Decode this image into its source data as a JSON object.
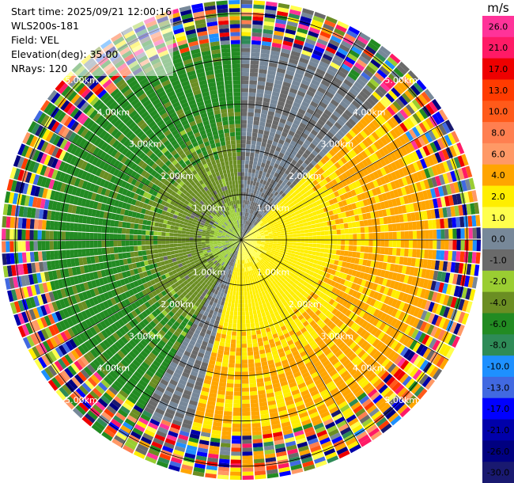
{
  "info": {
    "start_time": "Start time: 2025/09/21 12:00:16",
    "site": "WLS200s-181",
    "field": "Field: VEL",
    "elevation": "Elevation(deg): 35.00",
    "nrays": "NRays: 120"
  },
  "chart_data": {
    "type": "heatmap",
    "subtype": "ppi-polar",
    "field": "VEL",
    "units": "m/s",
    "nrays": 120,
    "range_max_km": 5.3,
    "range_rings_km": [
      1,
      2,
      3,
      4,
      5
    ],
    "ring_labels": [
      "1.00km",
      "2.00km",
      "3.00km",
      "4.00km",
      "5.00km"
    ],
    "spokes_deg": [
      0,
      30,
      60,
      90,
      120,
      150,
      180,
      210,
      240,
      270,
      300,
      330
    ],
    "colorbar": {
      "title": "m/s",
      "tick_labels": [
        "26.0",
        "21.0",
        "17.0",
        "13.0",
        "10.0",
        "8.0",
        "6.0",
        "4.0",
        "2.0",
        "1.0",
        "0.0",
        "-1.0",
        "-2.0",
        "-4.0",
        "-6.0",
        "-8.0",
        "-10.0",
        "-13.0",
        "-17.0",
        "-21.0",
        "-26.0",
        "-30.0"
      ],
      "colors": [
        "#ff3399",
        "#ff1a66",
        "#ee0000",
        "#ff3b00",
        "#ff5a1a",
        "#ff7f50",
        "#ff9966",
        "#ffa500",
        "#ffee00",
        "#ffff4d",
        "#778899",
        "#6a6a6a",
        "#9acd32",
        "#6b8e23",
        "#228b22",
        "#2e8b57",
        "#1e90ff",
        "#4169e1",
        "#0000ff",
        "#0000aa",
        "#000080",
        "#191970"
      ]
    },
    "velocity_pattern": {
      "approach_sector_deg": [
        210,
        360
      ],
      "recede_sector_deg": [
        45,
        195
      ],
      "near_range_approach": "-2.0 to -6.0",
      "near_range_recede": "2.0 to 6.0",
      "noisy_beyond_km": 4.3
    }
  }
}
